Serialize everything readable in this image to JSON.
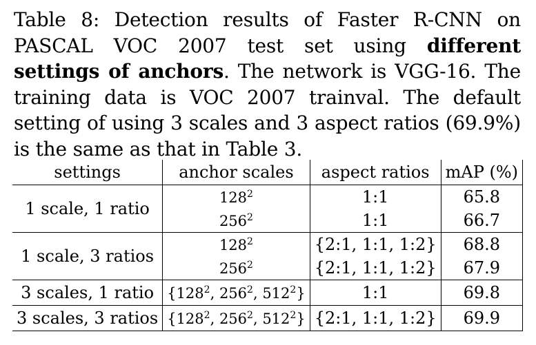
{
  "caption": {
    "label": "Table 8:",
    "text_before_bold": " Detection results of Faster R-CNN on PASCAL VOC 2007 test set using ",
    "bold_text": "different settings of anchors",
    "text_after_bold": ". The network is VGG-16. The training data is VOC 2007 trainval. The default setting of using 3 scales and 3 aspect ratios (69.9%) is the same as that in Table 3."
  },
  "table": {
    "headers": [
      "settings",
      "anchor scales",
      "aspect ratios",
      "mAP (%)"
    ],
    "groups": [
      {
        "setting": "1 scale, 1 ratio",
        "rows": [
          {
            "scale_base": "128",
            "scale_exp": "2",
            "ratio": "1:1",
            "map": "65.8"
          },
          {
            "scale_base": "256",
            "scale_exp": "2",
            "ratio": "1:1",
            "map": "66.7"
          }
        ]
      },
      {
        "setting": "1 scale, 3 ratios",
        "rows": [
          {
            "scale_base": "128",
            "scale_exp": "2",
            "ratio": "{2:1, 1:1, 1:2}",
            "map": "68.8"
          },
          {
            "scale_base": "256",
            "scale_exp": "2",
            "ratio": "{2:1, 1:1, 1:2}",
            "map": "67.9"
          }
        ]
      },
      {
        "setting": "3 scales, 1 ratio",
        "scales_set": {
          "open": "{",
          "s1": "128",
          "s2": "256",
          "s3": "512",
          "exp": "2",
          "sep": ", ",
          "close": "}"
        },
        "ratio": "1:1",
        "map": "69.8"
      },
      {
        "setting": "3 scales, 3 ratios",
        "scales_set": {
          "open": "{",
          "s1": "128",
          "s2": "256",
          "s3": "512",
          "exp": "2",
          "sep": ", ",
          "close": "}"
        },
        "ratio": "{2:1, 1:1, 1:2}",
        "map": "69.9"
      }
    ]
  }
}
